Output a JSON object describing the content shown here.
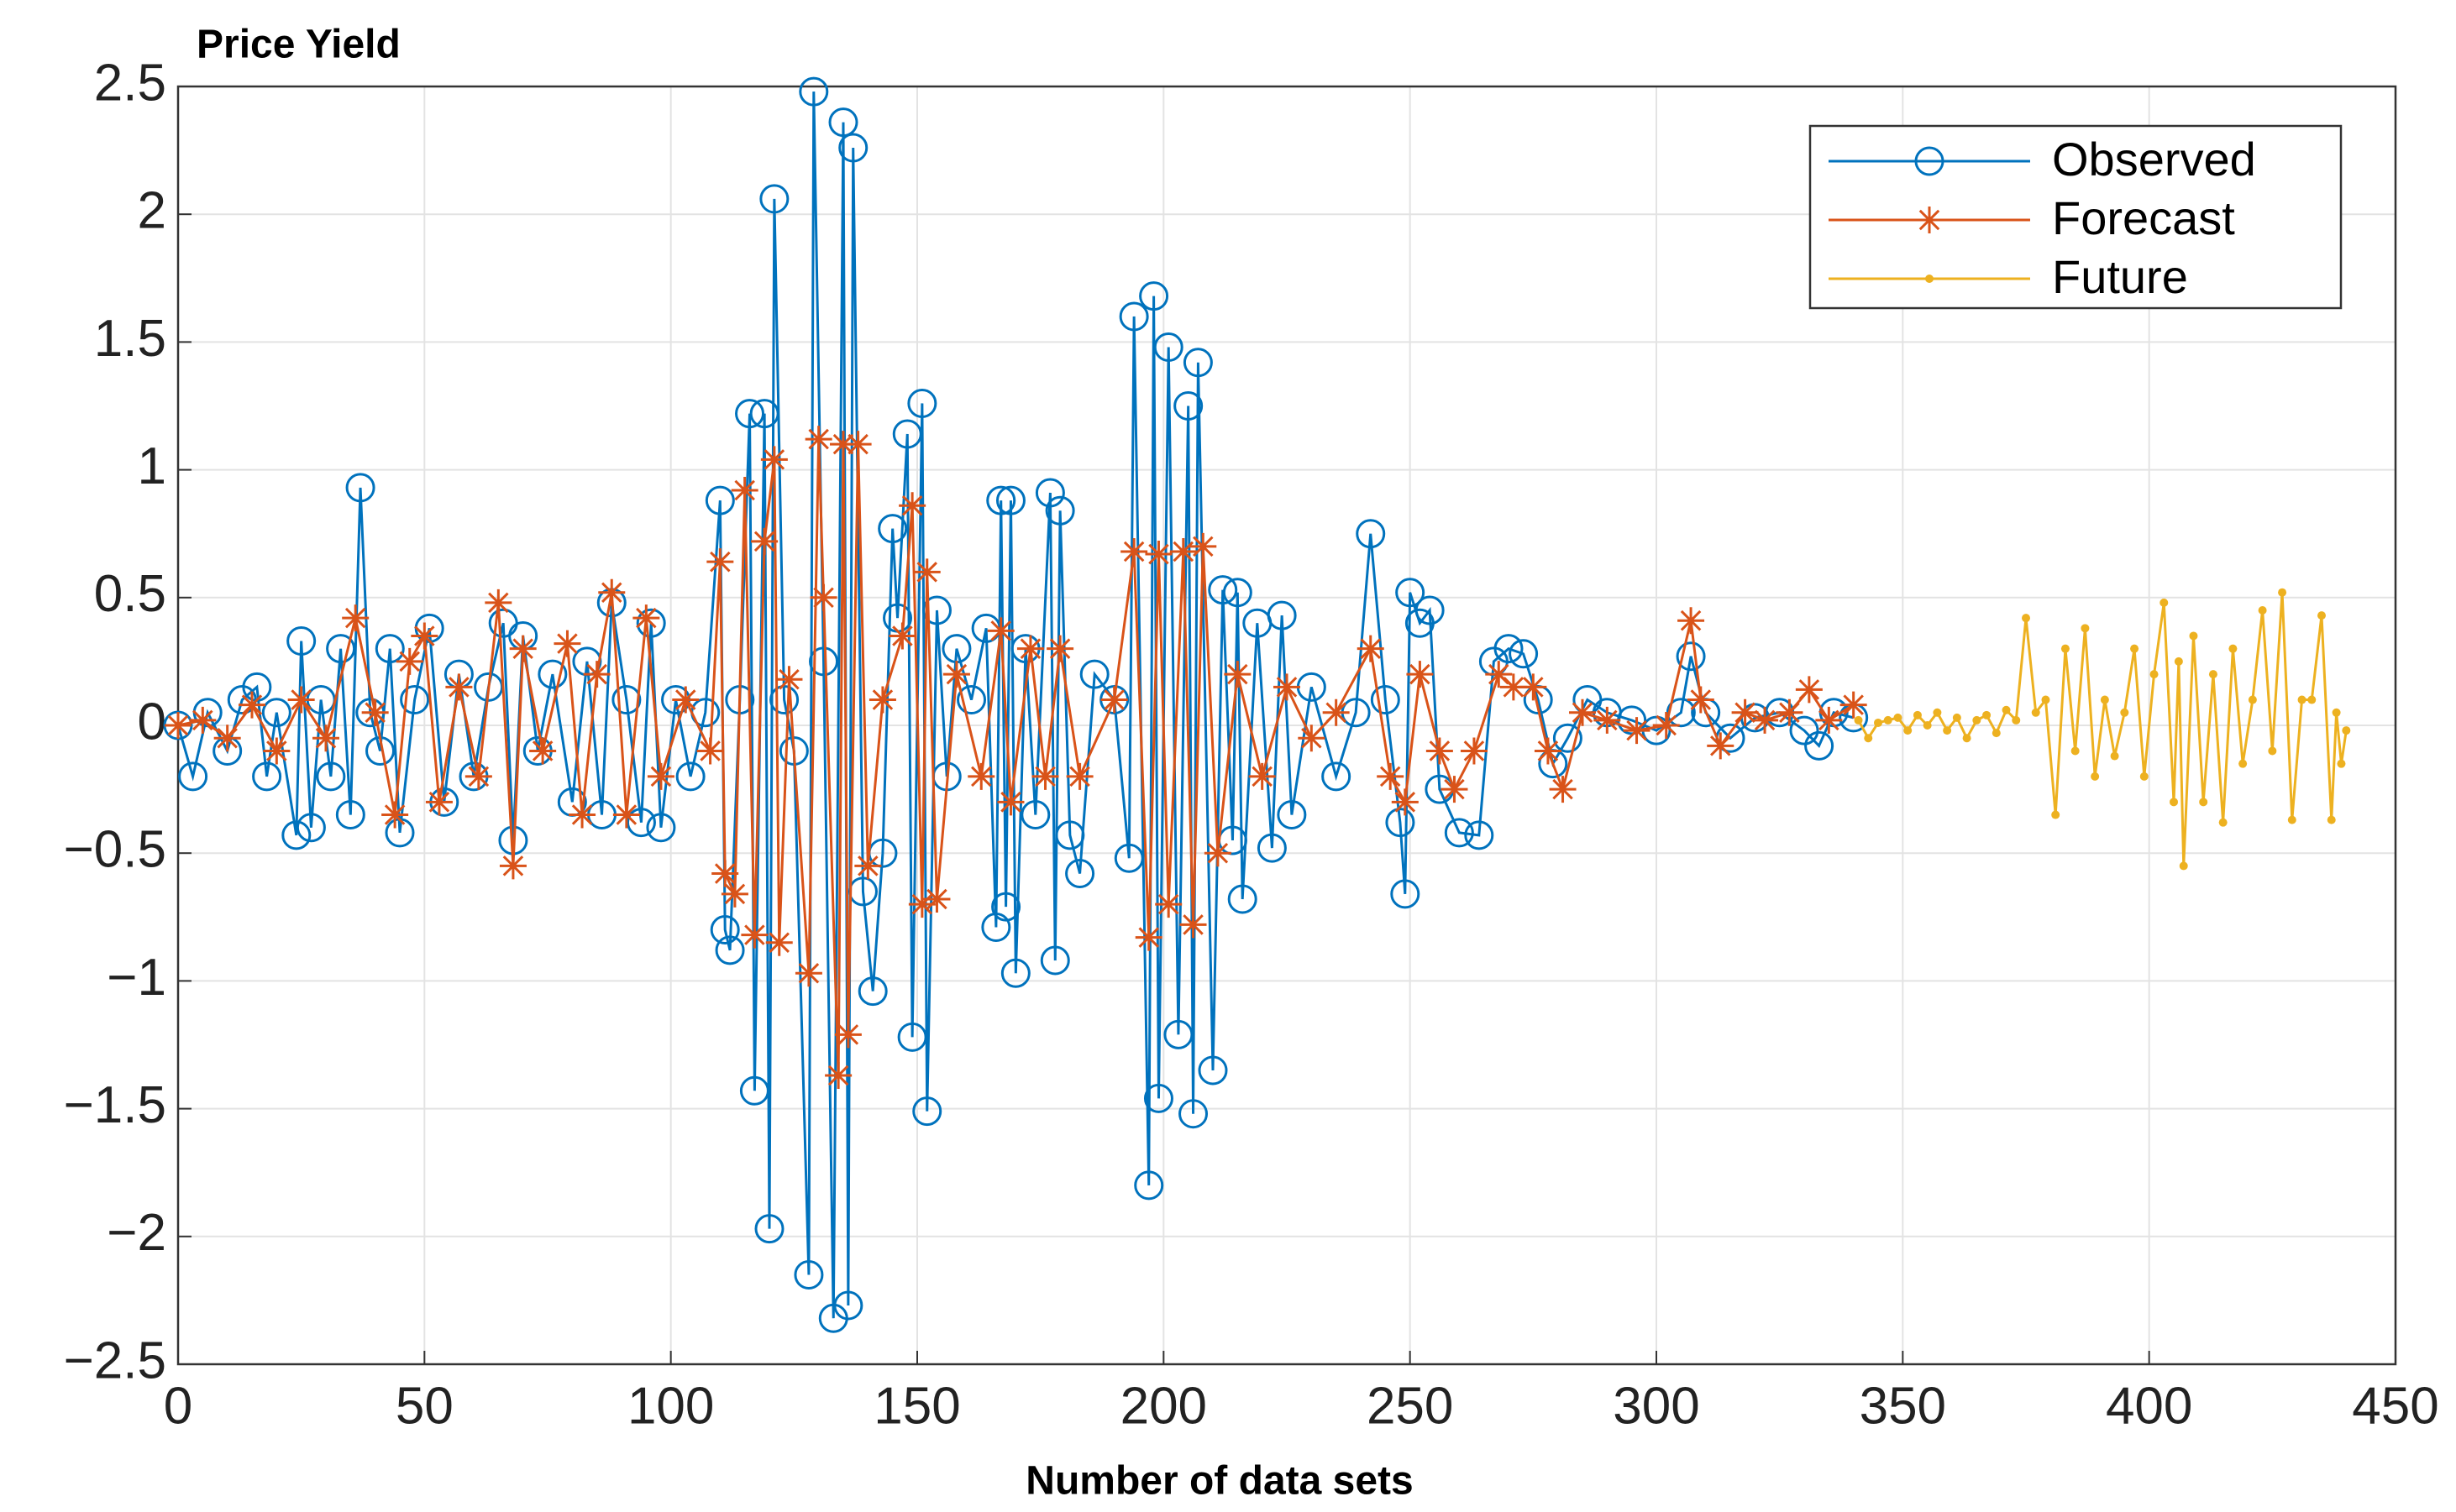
{
  "chart_data": {
    "type": "line",
    "title": "Price Yield",
    "x_label": "Number of data sets",
    "xlim": [
      0,
      450
    ],
    "xticks": [
      0,
      50,
      100,
      150,
      200,
      250,
      300,
      350,
      400,
      450
    ],
    "ylim": [
      -2.5,
      2.5
    ],
    "yticks": [
      {
        "value": -2.5,
        "label": "−2.5"
      },
      {
        "value": -2,
        "label": "−2"
      },
      {
        "value": -1.5,
        "label": "−1.5"
      },
      {
        "value": -1,
        "label": "−1"
      },
      {
        "value": -0.5,
        "label": "−0.5"
      },
      0,
      0.5,
      1,
      1.5,
      2,
      2.5
    ],
    "grid": true,
    "legend": "northeast",
    "series": [
      {
        "name": "Observed",
        "color": "#0072BD",
        "marker": "circle",
        "x": [
          0,
          3,
          6,
          10,
          13,
          16,
          18,
          20,
          24,
          25,
          27,
          29,
          31,
          33,
          35,
          37,
          39,
          41,
          43,
          45,
          48,
          51,
          54,
          57,
          60,
          63,
          66,
          68,
          70,
          73,
          76,
          80,
          83,
          86,
          88,
          91,
          94,
          96,
          98,
          101,
          104,
          107,
          110,
          111,
          112,
          114,
          116,
          117,
          119,
          120,
          121,
          123,
          125,
          128,
          129,
          131,
          133,
          135,
          136,
          137,
          139,
          141,
          143,
          145,
          146,
          148,
          149,
          151,
          152,
          154,
          156,
          158,
          161,
          164,
          166,
          167,
          168,
          169,
          170,
          172,
          174,
          177,
          178,
          179,
          181,
          183,
          186,
          190,
          193,
          194,
          197,
          198,
          199,
          201,
          203,
          205,
          206,
          207,
          210,
          212,
          214,
          215,
          216,
          219,
          222,
          224,
          226,
          230,
          235,
          239,
          242,
          245,
          248,
          249,
          250,
          252,
          254,
          256,
          260,
          264,
          267,
          270,
          273,
          276,
          279,
          282,
          286,
          290,
          295,
          300,
          305,
          307,
          310,
          315,
          320,
          325,
          330,
          333,
          336,
          340
        ],
        "values": [
          0,
          -0.2,
          0.05,
          -0.1,
          0.1,
          0.15,
          -0.2,
          0.05,
          -0.43,
          0.33,
          -0.4,
          0.1,
          -0.2,
          0.3,
          -0.35,
          0.93,
          0.05,
          -0.1,
          0.3,
          -0.42,
          0.1,
          0.38,
          -0.3,
          0.2,
          -0.2,
          0.15,
          0.4,
          -0.45,
          0.35,
          -0.1,
          0.2,
          -0.3,
          0.25,
          -0.35,
          0.48,
          0.1,
          -0.38,
          0.4,
          -0.4,
          0.1,
          -0.2,
          0.05,
          0.88,
          -0.8,
          -0.88,
          0.1,
          1.22,
          -1.43,
          1.22,
          -1.97,
          2.06,
          0.1,
          -0.1,
          -2.15,
          2.48,
          0.25,
          -2.32,
          2.36,
          -2.27,
          2.26,
          -0.65,
          -1.04,
          -0.5,
          0.77,
          0.42,
          1.14,
          -1.22,
          1.26,
          -1.51,
          0.45,
          -0.2,
          0.3,
          0.1,
          0.38,
          -0.79,
          0.88,
          -0.71,
          0.88,
          -0.97,
          0.3,
          -0.35,
          0.91,
          -0.92,
          0.84,
          -0.43,
          -0.58,
          0.2,
          0.1,
          -0.52,
          1.6,
          -1.8,
          1.68,
          -1.46,
          1.48,
          -1.21,
          1.25,
          -1.52,
          1.42,
          -1.35,
          0.53,
          -0.45,
          0.52,
          -0.68,
          0.4,
          -0.48,
          0.43,
          -0.35,
          0.15,
          -0.2,
          0.05,
          0.75,
          0.1,
          -0.38,
          -0.66,
          0.52,
          0.4,
          0.45,
          -0.25,
          -0.42,
          -0.43,
          0.25,
          0.3,
          0.28,
          0.1,
          -0.15,
          -0.05,
          0.1,
          0.05,
          0.02,
          -0.02,
          0.05,
          0.27,
          0.05,
          -0.05,
          0.03,
          0.05,
          -0.02,
          -0.08,
          0.05,
          0.03
        ]
      },
      {
        "name": "Forecast",
        "color": "#D95319",
        "marker": "asterisk",
        "x": [
          0,
          5,
          10,
          15,
          20,
          25,
          30,
          36,
          40,
          44,
          47,
          50,
          53,
          57,
          61,
          65,
          68,
          70,
          74,
          79,
          82,
          85,
          88,
          91,
          95,
          98,
          103,
          108,
          110,
          111,
          113,
          115,
          117,
          119,
          121,
          122,
          124,
          128,
          130,
          131,
          134,
          135,
          136,
          138,
          140,
          143,
          147,
          149,
          151,
          152,
          154,
          158,
          163,
          167,
          169,
          173,
          176,
          179,
          183,
          190,
          194,
          197,
          199,
          201,
          204,
          206,
          208,
          211,
          215,
          220,
          225,
          230,
          235,
          242,
          246,
          249,
          252,
          256,
          259,
          263,
          268,
          271,
          275,
          278,
          281,
          285,
          290,
          296,
          302,
          307,
          309,
          313,
          318,
          322,
          327,
          331,
          335,
          340
        ],
        "values": [
          0,
          0.02,
          -0.05,
          0.08,
          -0.1,
          0.1,
          -0.05,
          0.42,
          0.05,
          -0.35,
          0.25,
          0.35,
          -0.3,
          0.15,
          -0.2,
          0.48,
          -0.55,
          0.3,
          -0.1,
          0.32,
          -0.35,
          0.2,
          0.52,
          -0.35,
          0.42,
          -0.2,
          0.1,
          -0.1,
          0.64,
          -0.58,
          -0.66,
          0.92,
          -0.82,
          0.72,
          1.04,
          -0.85,
          0.18,
          -0.97,
          1.12,
          0.5,
          -1.37,
          1.1,
          -1.21,
          1.1,
          -0.55,
          0.1,
          0.35,
          0.86,
          -0.7,
          0.6,
          -0.68,
          0.2,
          -0.2,
          0.37,
          -0.3,
          0.3,
          -0.2,
          0.3,
          -0.2,
          0.1,
          0.68,
          -0.83,
          0.67,
          -0.7,
          0.68,
          -0.78,
          0.7,
          -0.5,
          0.2,
          -0.2,
          0.15,
          -0.05,
          0.05,
          0.3,
          -0.2,
          -0.3,
          0.2,
          -0.1,
          -0.25,
          -0.1,
          0.2,
          0.15,
          0.15,
          -0.1,
          -0.25,
          0.05,
          0.02,
          -0.02,
          0,
          0.41,
          0.1,
          -0.08,
          0.05,
          0.02,
          0.05,
          0.14,
          0.02,
          0.08
        ]
      },
      {
        "name": "Future",
        "color": "#EDB120",
        "marker": "dot",
        "x": [
          341,
          343,
          345,
          347,
          349,
          351,
          353,
          355,
          357,
          359,
          361,
          363,
          365,
          367,
          369,
          371,
          373,
          375,
          377,
          379,
          381,
          383,
          385,
          387,
          389,
          391,
          393,
          395,
          397,
          399,
          401,
          403,
          405,
          406,
          407,
          409,
          411,
          413,
          415,
          417,
          419,
          421,
          423,
          425,
          427,
          429,
          431,
          433,
          435,
          437,
          438,
          439,
          440
        ],
        "values": [
          0.02,
          -0.05,
          0.01,
          0.02,
          0.03,
          -0.02,
          0.04,
          0,
          0.05,
          -0.02,
          0.03,
          -0.05,
          0.02,
          0.04,
          -0.03,
          0.06,
          0.02,
          0.42,
          0.05,
          0.1,
          -0.35,
          0.3,
          -0.1,
          0.38,
          -0.2,
          0.1,
          -0.12,
          0.05,
          0.3,
          -0.2,
          0.2,
          0.48,
          -0.3,
          0.25,
          -0.55,
          0.35,
          -0.3,
          0.2,
          -0.38,
          0.3,
          -0.15,
          0.1,
          0.45,
          -0.1,
          0.52,
          -0.37,
          0.1,
          0.1,
          0.43,
          -0.37,
          0.05,
          -0.15,
          -0.02
        ]
      }
    ]
  }
}
